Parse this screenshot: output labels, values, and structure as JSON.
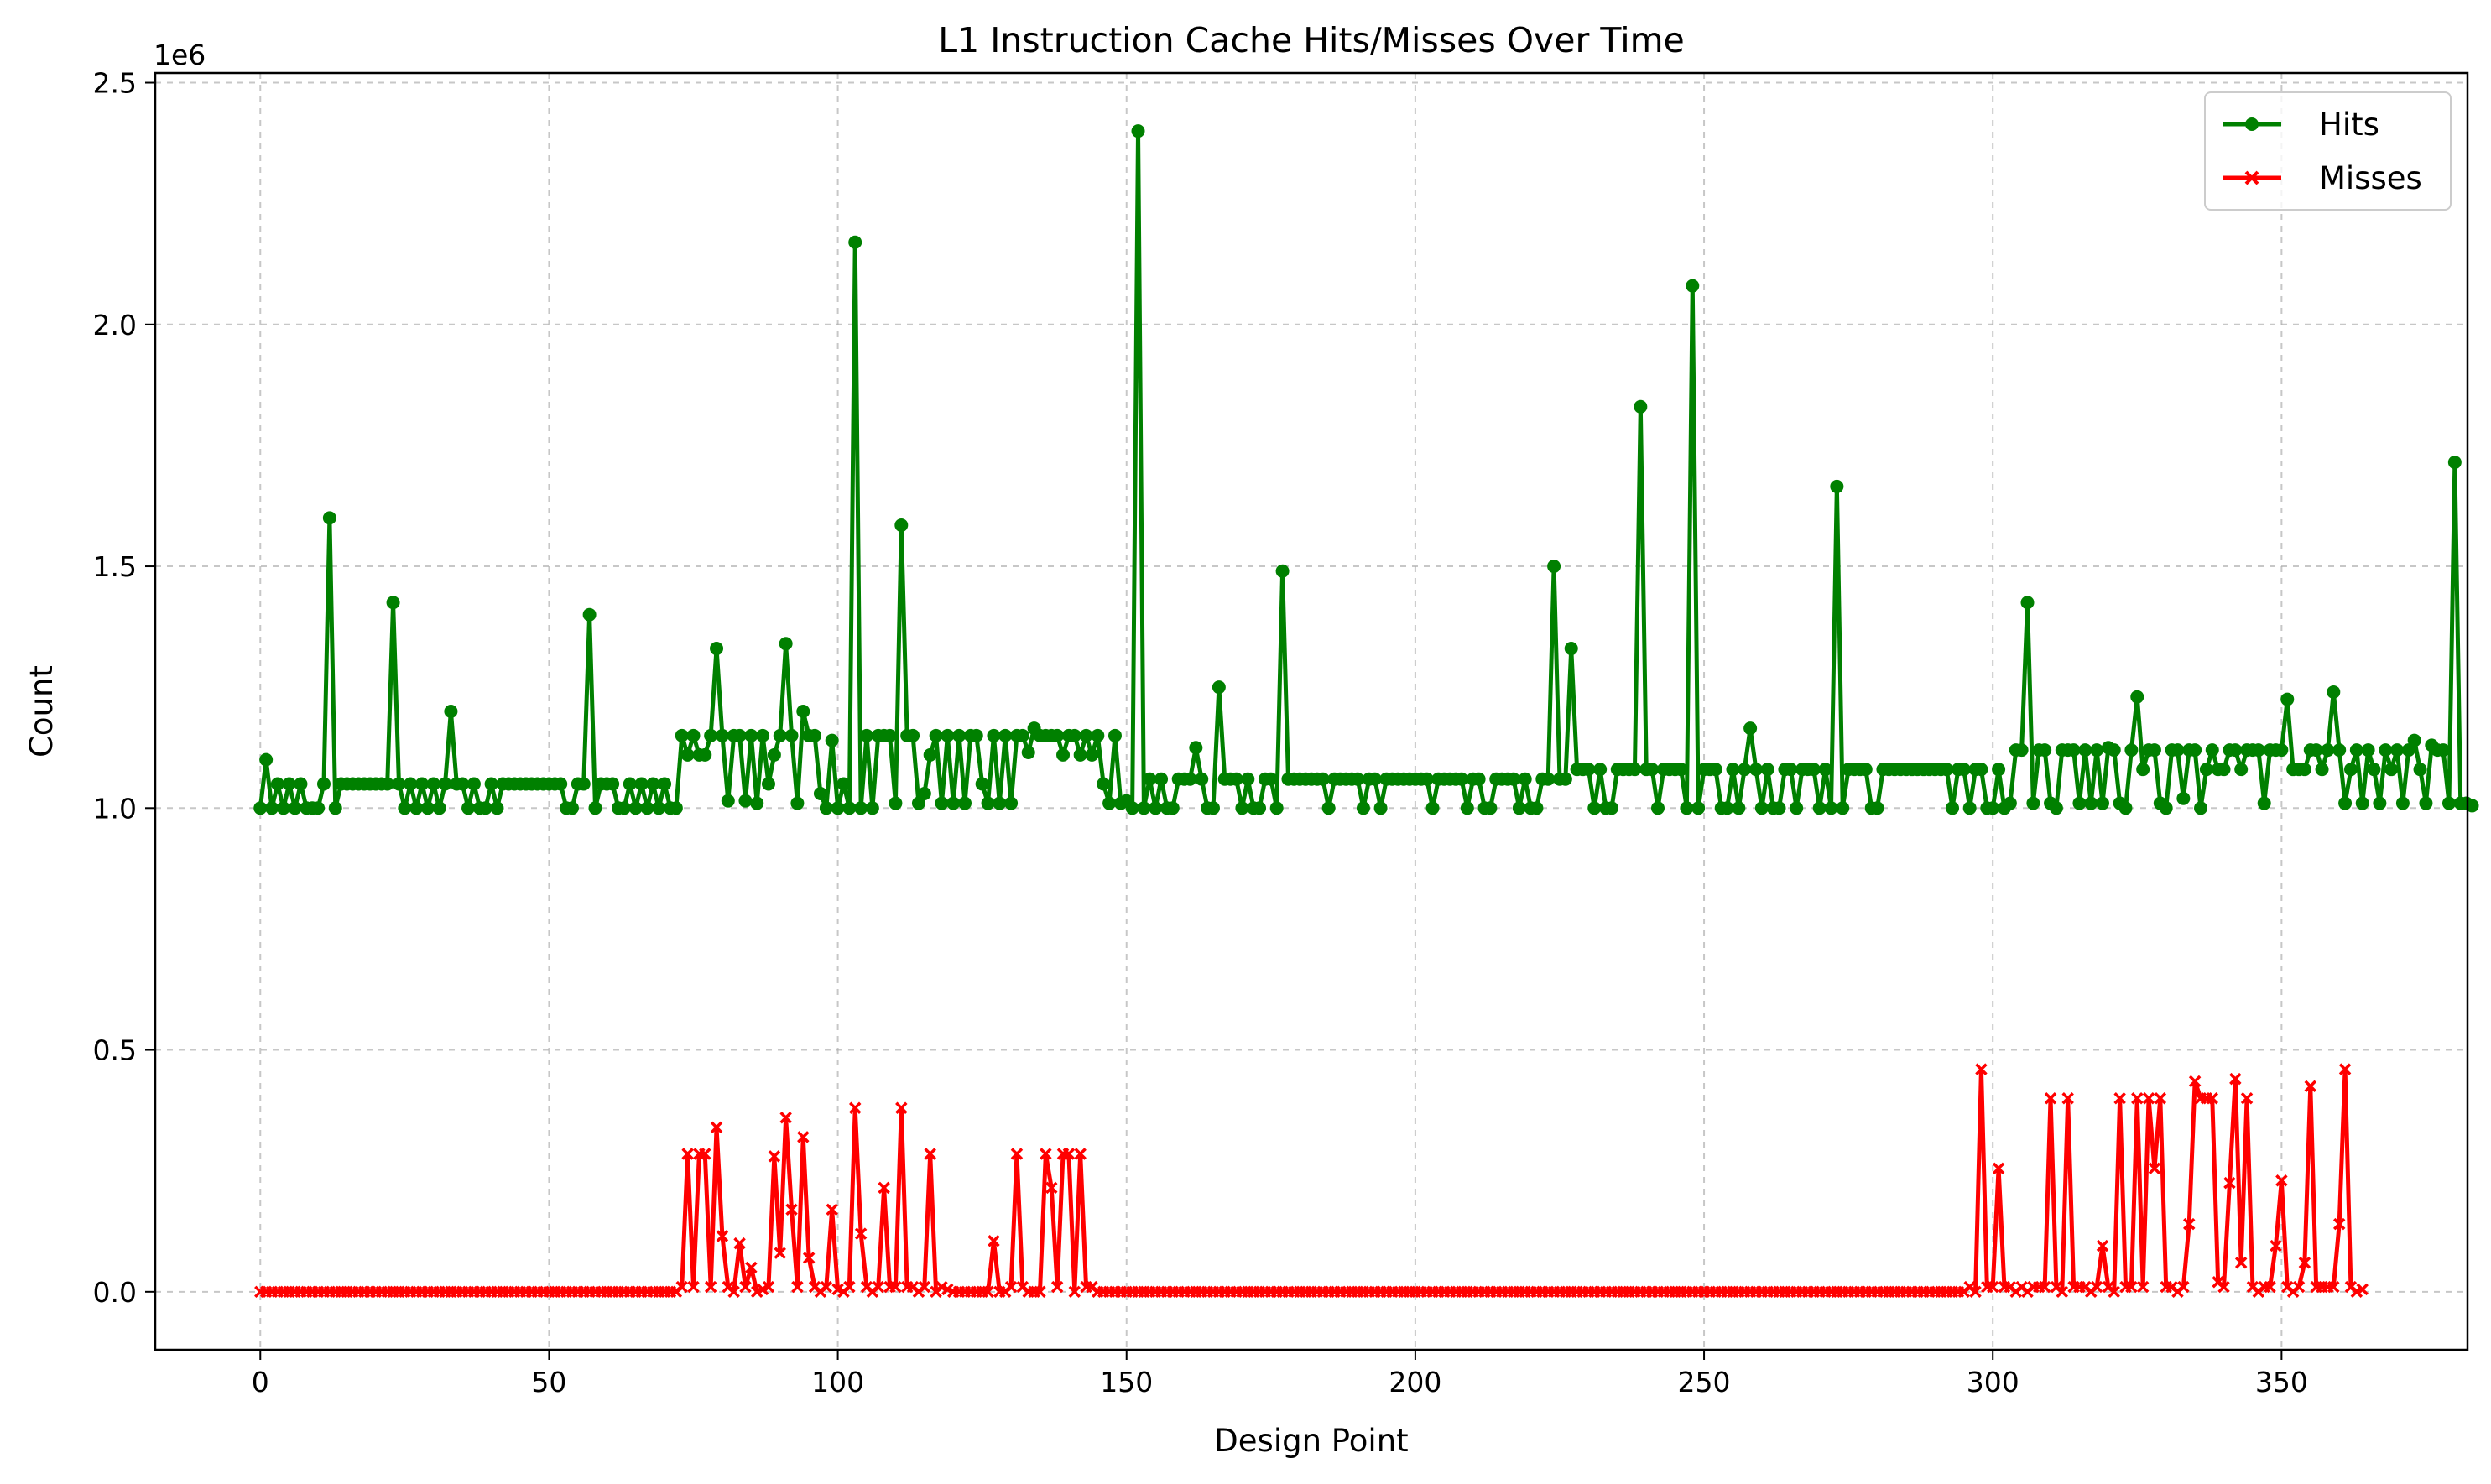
{
  "chart_data": {
    "type": "line",
    "title": "L1 Instruction Cache Hits/Misses Over Time",
    "xlabel": "Design Point",
    "ylabel": "Count",
    "y_offset_label": "1e6",
    "xlim": [
      -18.2,
      382.2
    ],
    "ylim": [
      -0.12,
      2.52
    ],
    "y_units": "millions (x 1e6)",
    "x_ticks": [
      0,
      50,
      100,
      150,
      200,
      250,
      300,
      350
    ],
    "x_tick_labels": [
      "0",
      "50",
      "100",
      "150",
      "200",
      "250",
      "300",
      "350"
    ],
    "y_ticks": [
      0.0,
      0.5,
      1.0,
      1.5,
      2.0,
      2.5
    ],
    "y_tick_labels": [
      "0.0",
      "0.5",
      "1.0",
      "1.5",
      "2.0",
      "2.5"
    ],
    "grid": true,
    "legend_position": "top-right",
    "series": [
      {
        "name": "Hits",
        "color": "#008000",
        "marker": "circle",
        "x_start": 0,
        "values": [
          1.0,
          1.1,
          1.0,
          1.05,
          1.0,
          1.05,
          1.0,
          1.05,
          1.0,
          1.0,
          1.0,
          1.05,
          1.6,
          1.0,
          1.05,
          1.05,
          1.05,
          1.05,
          1.05,
          1.05,
          1.05,
          1.05,
          1.05,
          1.425,
          1.05,
          1.0,
          1.05,
          1.0,
          1.05,
          1.0,
          1.05,
          1.0,
          1.05,
          1.2,
          1.05,
          1.05,
          1.0,
          1.05,
          1.0,
          1.0,
          1.05,
          1.0,
          1.05,
          1.05,
          1.05,
          1.05,
          1.05,
          1.05,
          1.05,
          1.05,
          1.05,
          1.05,
          1.05,
          1.0,
          1.0,
          1.05,
          1.05,
          1.4,
          1.0,
          1.05,
          1.05,
          1.05,
          1.0,
          1.0,
          1.05,
          1.0,
          1.05,
          1.0,
          1.05,
          1.0,
          1.05,
          1.0,
          1.0,
          1.15,
          1.11,
          1.15,
          1.11,
          1.11,
          1.15,
          1.33,
          1.15,
          1.015,
          1.15,
          1.15,
          1.015,
          1.15,
          1.01,
          1.15,
          1.05,
          1.11,
          1.15,
          1.34,
          1.15,
          1.01,
          1.2,
          1.15,
          1.15,
          1.03,
          1.0,
          1.14,
          1.0,
          1.05,
          1.0,
          2.17,
          1.0,
          1.15,
          1.0,
          1.15,
          1.15,
          1.15,
          1.01,
          1.585,
          1.15,
          1.15,
          1.01,
          1.03,
          1.11,
          1.15,
          1.01,
          1.15,
          1.01,
          1.15,
          1.01,
          1.15,
          1.15,
          1.05,
          1.01,
          1.15,
          1.01,
          1.15,
          1.01,
          1.15,
          1.15,
          1.115,
          1.165,
          1.15,
          1.15,
          1.15,
          1.15,
          1.11,
          1.15,
          1.15,
          1.11,
          1.15,
          1.11,
          1.15,
          1.05,
          1.01,
          1.15,
          1.01,
          1.015,
          1.0,
          2.4,
          1.0,
          1.06,
          1.0,
          1.06,
          1.0,
          1.0,
          1.06,
          1.06,
          1.06,
          1.125,
          1.06,
          1.0,
          1.0,
          1.25,
          1.06,
          1.06,
          1.06,
          1.0,
          1.06,
          1.0,
          1.0,
          1.06,
          1.06,
          1.0,
          1.49,
          1.06,
          1.06,
          1.06,
          1.06,
          1.06,
          1.06,
          1.06,
          1.0,
          1.06,
          1.06,
          1.06,
          1.06,
          1.06,
          1.0,
          1.06,
          1.06,
          1.0,
          1.06,
          1.06,
          1.06,
          1.06,
          1.06,
          1.06,
          1.06,
          1.06,
          1.0,
          1.06,
          1.06,
          1.06,
          1.06,
          1.06,
          1.0,
          1.06,
          1.06,
          1.0,
          1.0,
          1.06,
          1.06,
          1.06,
          1.06,
          1.0,
          1.06,
          1.0,
          1.0,
          1.06,
          1.06,
          1.5,
          1.06,
          1.06,
          1.33,
          1.08,
          1.08,
          1.08,
          1.0,
          1.08,
          1.0,
          1.0,
          1.08,
          1.08,
          1.08,
          1.08,
          1.83,
          1.08,
          1.08,
          1.0,
          1.08,
          1.08,
          1.08,
          1.08,
          1.0,
          2.08,
          1.0,
          1.08,
          1.08,
          1.08,
          1.0,
          1.0,
          1.08,
          1.0,
          1.08,
          1.165,
          1.08,
          1.0,
          1.08,
          1.0,
          1.0,
          1.08,
          1.08,
          1.0,
          1.08,
          1.08,
          1.08,
          1.0,
          1.08,
          1.0,
          1.665,
          1.0,
          1.08,
          1.08,
          1.08,
          1.08,
          1.0,
          1.0,
          1.08,
          1.08,
          1.08,
          1.08,
          1.08,
          1.08,
          1.08,
          1.08,
          1.08,
          1.08,
          1.08,
          1.08,
          1.0,
          1.08,
          1.08,
          1.0,
          1.08,
          1.08,
          1.0,
          1.0,
          1.08,
          1.0,
          1.01,
          1.12,
          1.12,
          1.425,
          1.01,
          1.12,
          1.12,
          1.01,
          1.0,
          1.12,
          1.12,
          1.12,
          1.01,
          1.12,
          1.01,
          1.12,
          1.01,
          1.125,
          1.12,
          1.01,
          1.0,
          1.12,
          1.23,
          1.08,
          1.12,
          1.12,
          1.01,
          1.0,
          1.12,
          1.12,
          1.02,
          1.12,
          1.12,
          1.0,
          1.08,
          1.12,
          1.08,
          1.08,
          1.12,
          1.12,
          1.08,
          1.12,
          1.12,
          1.12,
          1.01,
          1.12,
          1.12,
          1.12,
          1.225,
          1.08,
          1.08,
          1.08,
          1.12,
          1.12,
          1.08,
          1.12,
          1.24,
          1.12,
          1.01,
          1.08,
          1.12,
          1.01,
          1.12,
          1.08,
          1.01,
          1.12,
          1.08,
          1.12,
          1.01,
          1.12,
          1.14,
          1.08,
          1.01,
          1.13,
          1.12,
          1.12,
          1.01,
          1.715,
          1.01,
          1.01,
          1.005
        ]
      },
      {
        "name": "Misses",
        "color": "#ff0000",
        "marker": "x",
        "x_start": 0,
        "values": [
          0.0,
          0.0,
          0.0,
          0.0,
          0.0,
          0.0,
          0.0,
          0.0,
          0.0,
          0.0,
          0.0,
          0.0,
          0.0,
          0.0,
          0.0,
          0.0,
          0.0,
          0.0,
          0.0,
          0.0,
          0.0,
          0.0,
          0.0,
          0.0,
          0.0,
          0.0,
          0.0,
          0.0,
          0.0,
          0.0,
          0.0,
          0.0,
          0.0,
          0.0,
          0.0,
          0.0,
          0.0,
          0.0,
          0.0,
          0.0,
          0.0,
          0.0,
          0.0,
          0.0,
          0.0,
          0.0,
          0.0,
          0.0,
          0.0,
          0.0,
          0.0,
          0.0,
          0.0,
          0.0,
          0.0,
          0.0,
          0.0,
          0.0,
          0.0,
          0.0,
          0.0,
          0.0,
          0.0,
          0.0,
          0.0,
          0.0,
          0.0,
          0.0,
          0.0,
          0.0,
          0.0,
          0.0,
          0.0,
          0.01,
          0.285,
          0.01,
          0.285,
          0.285,
          0.01,
          0.34,
          0.115,
          0.01,
          0.0,
          0.1,
          0.01,
          0.05,
          0.0,
          0.005,
          0.01,
          0.28,
          0.08,
          0.36,
          0.17,
          0.01,
          0.32,
          0.07,
          0.01,
          0.0,
          0.01,
          0.17,
          0.005,
          0.0,
          0.01,
          0.38,
          0.12,
          0.01,
          0.0,
          0.01,
          0.215,
          0.01,
          0.01,
          0.38,
          0.01,
          0.01,
          0.0,
          0.01,
          0.285,
          0.0,
          0.01,
          0.005,
          0.0,
          0.0,
          0.0,
          0.0,
          0.0,
          0.0,
          0.0,
          0.105,
          0.0,
          0.0,
          0.01,
          0.285,
          0.01,
          0.0,
          0.0,
          0.0,
          0.285,
          0.215,
          0.01,
          0.285,
          0.285,
          0.0,
          0.285,
          0.01,
          0.01,
          0.0,
          0.0,
          0.0,
          0.0,
          0.0,
          0.0,
          0.0,
          0.0,
          0.0,
          0.0,
          0.0,
          0.0,
          0.0,
          0.0,
          0.0,
          0.0,
          0.0,
          0.0,
          0.0,
          0.0,
          0.0,
          0.0,
          0.0,
          0.0,
          0.0,
          0.0,
          0.0,
          0.0,
          0.0,
          0.0,
          0.0,
          0.0,
          0.0,
          0.0,
          0.0,
          0.0,
          0.0,
          0.0,
          0.0,
          0.0,
          0.0,
          0.0,
          0.0,
          0.0,
          0.0,
          0.0,
          0.0,
          0.0,
          0.0,
          0.0,
          0.0,
          0.0,
          0.0,
          0.0,
          0.0,
          0.0,
          0.0,
          0.0,
          0.0,
          0.0,
          0.0,
          0.0,
          0.0,
          0.0,
          0.0,
          0.0,
          0.0,
          0.0,
          0.0,
          0.0,
          0.0,
          0.0,
          0.0,
          0.0,
          0.0,
          0.0,
          0.0,
          0.0,
          0.0,
          0.0,
          0.0,
          0.0,
          0.0,
          0.0,
          0.0,
          0.0,
          0.0,
          0.0,
          0.0,
          0.0,
          0.0,
          0.0,
          0.0,
          0.0,
          0.0,
          0.0,
          0.0,
          0.0,
          0.0,
          0.0,
          0.0,
          0.0,
          0.0,
          0.0,
          0.0,
          0.0,
          0.0,
          0.0,
          0.0,
          0.0,
          0.0,
          0.0,
          0.0,
          0.0,
          0.0,
          0.0,
          0.0,
          0.0,
          0.0,
          0.0,
          0.0,
          0.0,
          0.0,
          0.0,
          0.0,
          0.0,
          0.0,
          0.0,
          0.0,
          0.0,
          0.0,
          0.0,
          0.0,
          0.0,
          0.0,
          0.0,
          0.0,
          0.0,
          0.0,
          0.0,
          0.0,
          0.0,
          0.0,
          0.0,
          0.0,
          0.0,
          0.0,
          0.0,
          0.0,
          0.0,
          0.0,
          0.01,
          0.0,
          0.46,
          0.01,
          0.01,
          0.255,
          0.01,
          0.01,
          0.0,
          0.01,
          0.0,
          0.01,
          0.01,
          0.01,
          0.4,
          0.01,
          0.0,
          0.4,
          0.01,
          0.01,
          0.01,
          0.0,
          0.01,
          0.095,
          0.01,
          0.0,
          0.4,
          0.01,
          0.01,
          0.4,
          0.01,
          0.4,
          0.255,
          0.4,
          0.01,
          0.01,
          0.0,
          0.01,
          0.14,
          0.435,
          0.4,
          0.4,
          0.4,
          0.02,
          0.01,
          0.225,
          0.44,
          0.06,
          0.4,
          0.01,
          0.0,
          0.01,
          0.01,
          0.095,
          0.23,
          0.01,
          0.0,
          0.01,
          0.06,
          0.425,
          0.01,
          0.01,
          0.01,
          0.01,
          0.14,
          0.46,
          0.01,
          0.0,
          0.005
        ]
      }
    ]
  }
}
